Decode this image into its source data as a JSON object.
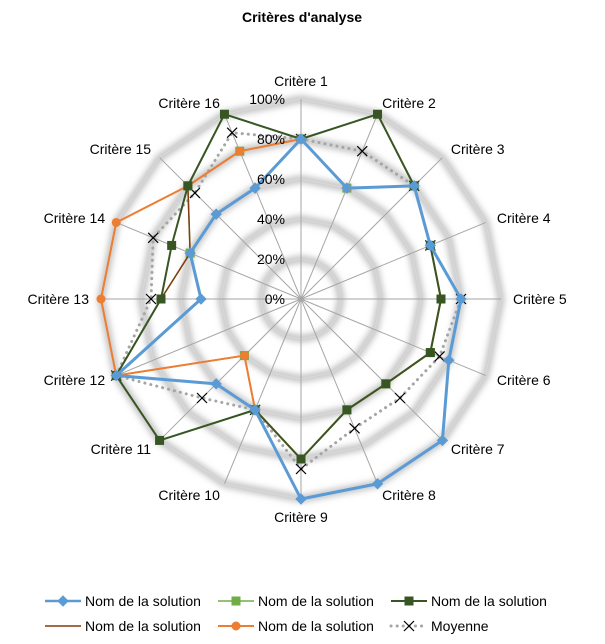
{
  "chart_data": {
    "type": "radar",
    "title": "Critères d'analyse",
    "categories": [
      "Critère 1",
      "Critère 2",
      "Critère 3",
      "Critère 4",
      "Critère 5",
      "Critère 6",
      "Critère 7",
      "Critère 8",
      "Critère 9",
      "Critère 10",
      "Critère 11",
      "Critère 12",
      "Critère 13",
      "Critère 14",
      "Critère 15",
      "Critère 16"
    ],
    "rticks": [
      "0%",
      "20%",
      "40%",
      "60%",
      "80%",
      "100%"
    ],
    "rlim": [
      0,
      100
    ],
    "grid": true,
    "legend_position": "bottom",
    "series": [
      {
        "name": "Nom de la solution",
        "color": "#5b9bd5",
        "marker": "diamond",
        "line": "solid",
        "width": 3,
        "values": [
          80,
          60,
          80,
          70,
          80,
          80,
          100,
          100,
          100,
          60,
          60,
          100,
          50,
          60,
          60,
          60
        ]
      },
      {
        "name": "Nom de la solution",
        "color": "#70ad47",
        "marker": "square",
        "line": "solid",
        "width": 1.5,
        "values": [
          80,
          60,
          80,
          70,
          70,
          70,
          60,
          60,
          80,
          60,
          40,
          100,
          70,
          60,
          80,
          80
        ]
      },
      {
        "name": "Nom de la solution",
        "color": "#375623",
        "marker": "square",
        "line": "solid",
        "width": 2,
        "values": [
          80,
          100,
          80,
          70,
          70,
          70,
          60,
          60,
          80,
          60,
          100,
          100,
          70,
          70,
          80,
          100
        ]
      },
      {
        "name": "Nom de la solution",
        "color": "#843c0c",
        "marker": "none",
        "line": "solid",
        "width": 1.5,
        "values": [
          80,
          60,
          80,
          70,
          70,
          70,
          60,
          60,
          80,
          60,
          40,
          100,
          70,
          60,
          80,
          80
        ]
      },
      {
        "name": "Nom de la solution",
        "color": "#ed7d31",
        "marker": "circle",
        "line": "solid",
        "width": 2,
        "values": [
          80,
          60,
          80,
          70,
          70,
          70,
          60,
          60,
          80,
          60,
          40,
          100,
          100,
          100,
          80,
          80
        ]
      },
      {
        "name": "Moyenne",
        "color": "#a5a5a5",
        "marker": "x",
        "line": "dotted",
        "width": 3,
        "values": [
          80,
          80,
          80,
          70,
          80,
          75,
          70,
          70,
          85,
          60,
          70,
          100,
          75,
          80,
          75,
          90
        ]
      }
    ]
  }
}
